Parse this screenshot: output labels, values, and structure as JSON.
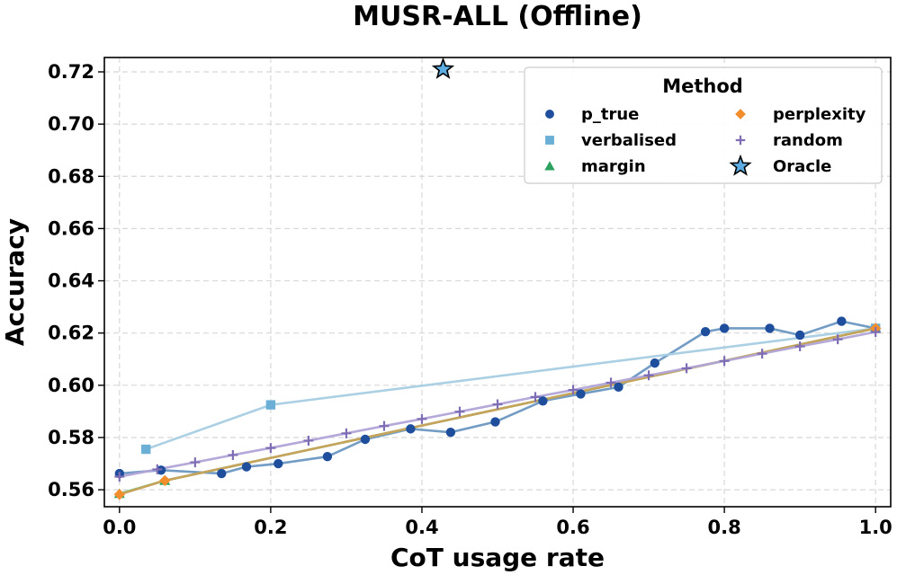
{
  "chart_data": {
    "type": "line",
    "title": "MUSR-ALL (Offline)",
    "xlabel": "CoT usage rate",
    "ylabel": "Accuracy",
    "xlim": [
      -0.02,
      1.02
    ],
    "ylim": [
      0.5535,
      0.7255
    ],
    "xticks": [
      "0.0",
      "0.2",
      "0.4",
      "0.6",
      "0.8",
      "1.0"
    ],
    "yticks": [
      "0.56",
      "0.58",
      "0.60",
      "0.62",
      "0.64",
      "0.66",
      "0.68",
      "0.70",
      "0.72"
    ],
    "grid": true,
    "legend": {
      "title": "Method",
      "placement": "top-right",
      "entries": [
        "p_true",
        "verbalised",
        "margin",
        "perplexity",
        "random",
        "Oracle"
      ]
    },
    "series": [
      {
        "name": "p_true",
        "marker": "circle",
        "color": "#1f4e9c",
        "line_color": "#6b97c2",
        "x": [
          0.0,
          0.055,
          0.135,
          0.168,
          0.21,
          0.275,
          0.325,
          0.385,
          0.438,
          0.497,
          0.56,
          0.61,
          0.66,
          0.708,
          0.775,
          0.8,
          0.86,
          0.9,
          0.955,
          1.0
        ],
        "y": [
          0.5662,
          0.5675,
          0.5662,
          0.5688,
          0.57,
          0.5727,
          0.5793,
          0.5833,
          0.582,
          0.586,
          0.594,
          0.5967,
          0.5993,
          0.6085,
          0.6205,
          0.6218,
          0.6218,
          0.6192,
          0.6245,
          0.6218
        ]
      },
      {
        "name": "verbalised",
        "marker": "square",
        "color": "#6baed6",
        "line_color": "#a6cee3",
        "x": [
          0.035,
          0.2,
          1.0
        ],
        "y": [
          0.5755,
          0.5925,
          0.6218
        ]
      },
      {
        "name": "margin",
        "marker": "triangle",
        "color": "#2ca25f",
        "line_color": "#74c476",
        "x": [
          0.0,
          0.06,
          1.0
        ],
        "y": [
          0.5585,
          0.5635,
          0.6218
        ]
      },
      {
        "name": "perplexity",
        "marker": "diamond",
        "color": "#f28e2b",
        "line_color": "#c9a15a",
        "x": [
          0.0,
          0.06,
          1.0
        ],
        "y": [
          0.5582,
          0.5635,
          0.6218
        ]
      },
      {
        "name": "random",
        "marker": "plus",
        "color": "#7e6db5",
        "line_color": "#b1a4d8",
        "x": [
          0.0,
          0.05,
          0.1,
          0.15,
          0.2,
          0.25,
          0.3,
          0.35,
          0.4,
          0.45,
          0.5,
          0.55,
          0.6,
          0.65,
          0.7,
          0.75,
          0.8,
          0.85,
          0.9,
          0.95,
          1.0
        ],
        "y": [
          0.565,
          0.5678,
          0.5705,
          0.5733,
          0.576,
          0.5788,
          0.5816,
          0.5844,
          0.5871,
          0.5899,
          0.5927,
          0.5955,
          0.5982,
          0.601,
          0.6038,
          0.6065,
          0.6093,
          0.6121,
          0.6149,
          0.6176,
          0.6204
        ]
      },
      {
        "name": "Oracle",
        "marker": "star",
        "color": "#5dade2",
        "line_color": null,
        "x": [
          0.428
        ],
        "y": [
          0.721
        ]
      }
    ]
  }
}
